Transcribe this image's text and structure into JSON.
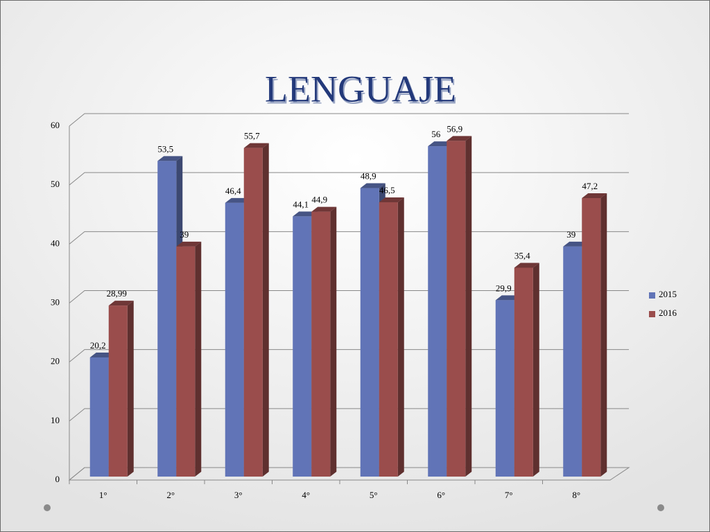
{
  "chart_data": {
    "type": "bar3d",
    "title": "LENGUAJE",
    "categories": [
      "1°",
      "2°",
      "3°",
      "4°",
      "5°",
      "6°",
      "7°",
      "8°"
    ],
    "series": [
      {
        "name": "2015",
        "color": "#6174b7",
        "values": [
          20.2,
          53.5,
          46.4,
          44.1,
          48.9,
          56,
          29.9,
          39
        ],
        "value_labels": [
          "20,2",
          "53,5",
          "46,4",
          "44,1",
          "48,9",
          "56",
          "29,9",
          "39"
        ]
      },
      {
        "name": "2016",
        "color": "#9a4d4c",
        "values": [
          28.99,
          39,
          55.7,
          44.9,
          46.5,
          56.9,
          35.4,
          47.2
        ],
        "value_labels": [
          "28,99",
          "39",
          "55,7",
          "44,9",
          "46,5",
          "56,9",
          "35,4",
          "47,2"
        ]
      }
    ],
    "ylim": [
      0,
      60
    ],
    "yticks": [
      0,
      10,
      20,
      30,
      40,
      50,
      60
    ],
    "grid": true,
    "legend": "right"
  }
}
